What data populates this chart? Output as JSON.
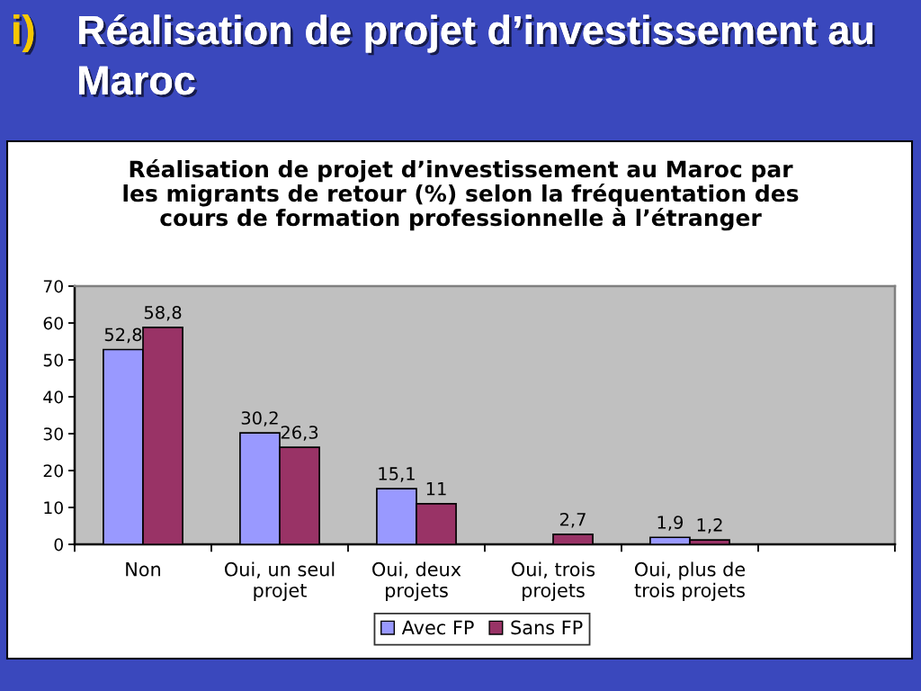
{
  "chart_data": {
    "type": "bar",
    "title": "Réalisation de projet d’investissement au\nMaroc",
    "subtitle": "Réalisation de projet d’investissement au Maroc par\nles migrants de retour (%) selon la fréquentation des\ncours de formation professionnelle à l’étranger",
    "annotations": [
      "i)"
    ],
    "categories": [
      "Non",
      "Oui, un seul\nprojet",
      "Oui, deux\nprojets",
      "Oui, trois\nprojets",
      "Oui, plus de\ntrois projets",
      null
    ],
    "series": [
      {
        "name": "Avec FP",
        "color": "#9999ff",
        "values": [
          52.8,
          30.2,
          15.1,
          null,
          1.9,
          null
        ],
        "value_labels": [
          "52,8",
          "30,2",
          "15,1",
          null,
          "1,9",
          null
        ]
      },
      {
        "name": "Sans FP",
        "color": "#993366",
        "values": [
          58.8,
          26.3,
          11,
          2.7,
          1.2,
          null
        ],
        "value_labels": [
          "58,8",
          "26,3",
          "11",
          "2,7",
          "1,2",
          null
        ]
      }
    ],
    "ylim": [
      0,
      70
    ],
    "yticks": [
      0,
      10,
      20,
      30,
      40,
      50,
      60,
      70
    ],
    "legend": "bottom"
  }
}
